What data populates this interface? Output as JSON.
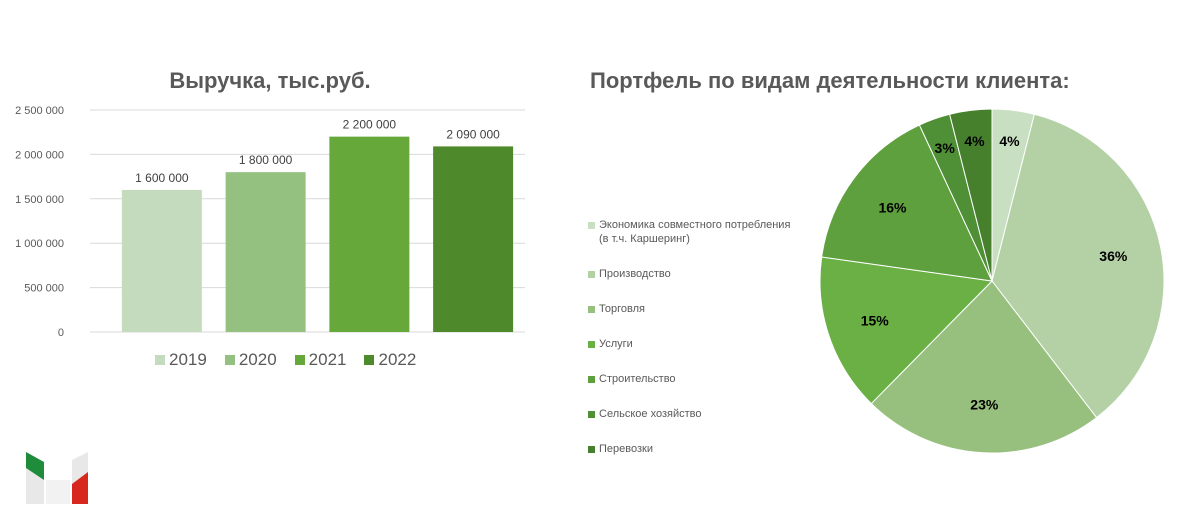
{
  "chart_data": [
    {
      "type": "bar",
      "title": "Выручка, тыс.руб.",
      "categories": [
        "2019",
        "2020",
        "2021",
        "2022"
      ],
      "values": [
        1600000,
        1800000,
        2200000,
        2090000
      ],
      "value_labels": [
        "1 600 000",
        "1 800 000",
        "2 200 000",
        "2 090 000"
      ],
      "ylim": [
        0,
        2500000
      ],
      "y_ticks": [
        0,
        500000,
        1000000,
        1500000,
        2000000,
        2500000
      ],
      "y_tick_labels": [
        "0",
        "500 000",
        "1 000 000",
        "1 500 000",
        "2 000 000",
        "2 500 000"
      ],
      "grid": true,
      "legend_position": "bottom",
      "colors": [
        "#c5dbbd",
        "#94c17f",
        "#66a83a",
        "#4e8a2c"
      ]
    },
    {
      "type": "pie",
      "title": "Портфель по видам деятельности клиента:",
      "labels": [
        "Экономика совместного потребления (в т.ч. Каршеринг)",
        "Производство",
        "Торговля",
        "Услуги",
        "Строительство",
        "Сельское хозяйство",
        "Перевозки"
      ],
      "values": [
        4,
        36,
        23,
        15,
        16,
        3,
        4
      ],
      "value_labels": [
        "4%",
        "36%",
        "23%",
        "15%",
        "16%",
        "3%",
        "4%"
      ],
      "legend_position": "left",
      "colors": [
        "#c9dfc1",
        "#b4d1a6",
        "#97c07f",
        "#6ab045",
        "#5da03d",
        "#4f8f36",
        "#46802d"
      ]
    }
  ]
}
